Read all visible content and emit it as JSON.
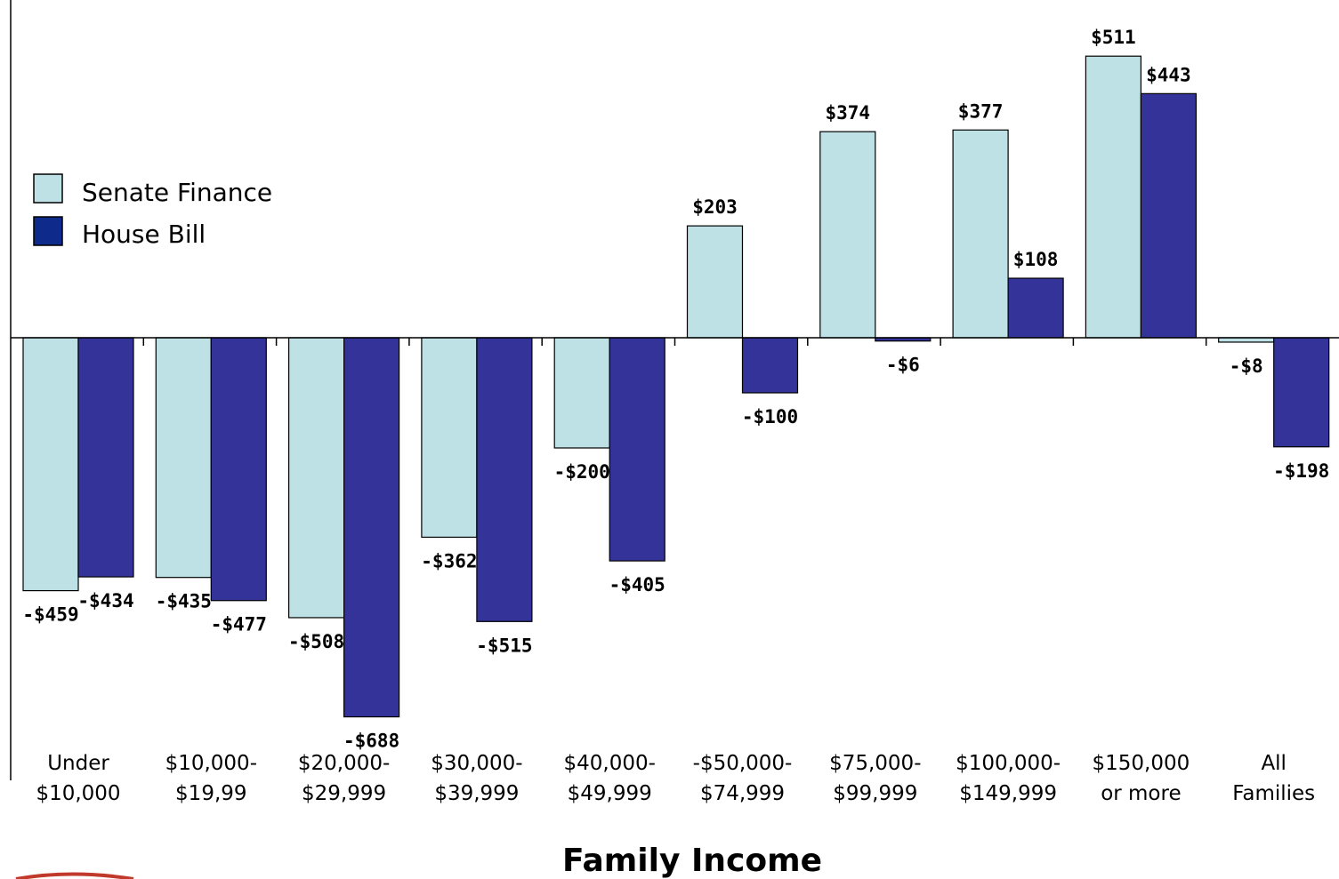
{
  "colors": {
    "senate": "#bde1e4",
    "house": "#333399",
    "legend_house": "#0e2a8a",
    "axis": "#000000",
    "logo_accent": "#c0392b"
  },
  "chart_data": {
    "type": "bar",
    "xlabel": "Family Income",
    "ylabel": "",
    "ylim": [
      -880,
      590
    ],
    "grid": false,
    "legend_position": "top-left",
    "categories": [
      [
        "Under",
        "$10,000"
      ],
      [
        "$10,000-",
        "$19,99"
      ],
      [
        "$20,000-",
        "$29,999"
      ],
      [
        "$30,000-",
        "$39,999"
      ],
      [
        "$40,000-",
        "$49,999"
      ],
      [
        "-$50,000-",
        "$74,999"
      ],
      [
        "$75,000-",
        "$99,999"
      ],
      [
        "$100,000-",
        "$149,999"
      ],
      [
        "$150,000",
        "or more"
      ],
      [
        "All",
        "Families"
      ]
    ],
    "series": [
      {
        "name": "Senate Finance",
        "values": [
          -459,
          -435,
          -508,
          -362,
          -200,
          203,
          374,
          377,
          511,
          -8
        ],
        "labels": [
          "-$459",
          "-$435",
          "-$508",
          "-$362",
          "-$200",
          "$203",
          "$374",
          "$377",
          "$511",
          "-$8"
        ]
      },
      {
        "name": "House Bill",
        "values": [
          -434,
          -477,
          -688,
          -515,
          -405,
          -100,
          -6,
          108,
          443,
          -198
        ],
        "labels": [
          "-$434",
          "-$477",
          "-$688",
          "-$515",
          "-$405",
          "-$100",
          "-$6",
          "$108",
          "$443",
          "-$198"
        ]
      }
    ]
  }
}
